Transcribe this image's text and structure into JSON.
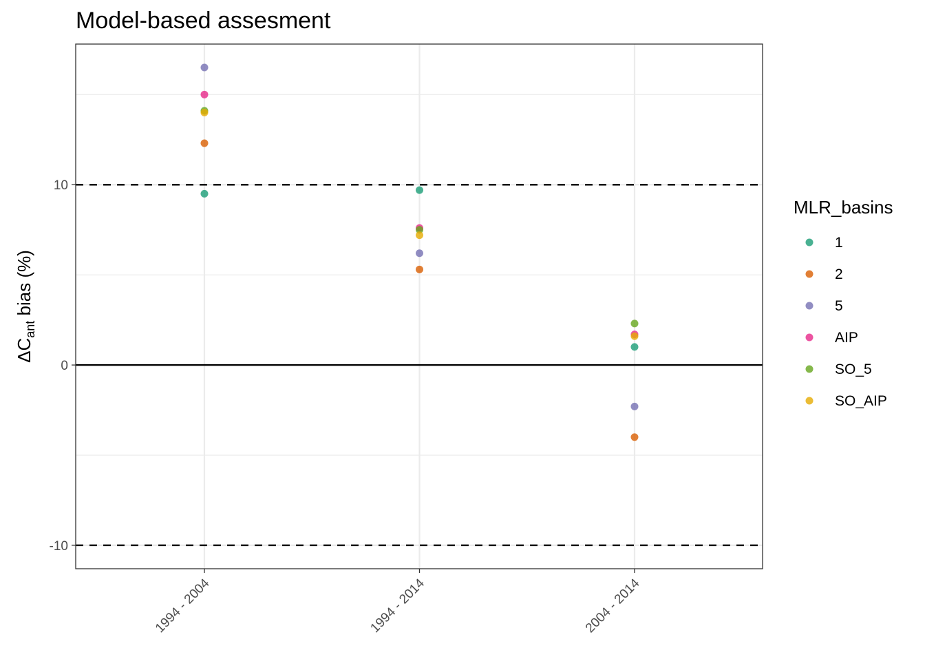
{
  "chart_data": {
    "type": "scatter",
    "title": "Model-based assesment",
    "xlabel": "",
    "ylabel": {
      "prefix": "ΔC",
      "subscript": "ant",
      "suffix": " bias (%)"
    },
    "categories": [
      "1994 - 2004",
      "1994 - 2014",
      "2004 - 2014"
    ],
    "ylim": [
      -11.3,
      17.8
    ],
    "y_ticks": [
      -10,
      0,
      10
    ],
    "y_minor_gridlines": [
      -5,
      5,
      15
    ],
    "reference_lines": [
      {
        "y": 10,
        "style": "dashed"
      },
      {
        "y": -10,
        "style": "dashed"
      },
      {
        "y": 0,
        "style": "solid"
      }
    ],
    "grid": true,
    "legend": {
      "title": "MLR_basins",
      "position": "right"
    },
    "series": [
      {
        "name": "1",
        "color": "#1b9e77",
        "values": [
          9.5,
          9.7,
          1.0
        ]
      },
      {
        "name": "2",
        "color": "#d95f02",
        "values": [
          12.3,
          5.3,
          -4.0
        ]
      },
      {
        "name": "5",
        "color": "#7570b3",
        "values": [
          16.5,
          6.2,
          -2.3
        ]
      },
      {
        "name": "AIP",
        "color": "#e7298a",
        "values": [
          15.0,
          7.6,
          1.7
        ]
      },
      {
        "name": "SO_5",
        "color": "#66a61e",
        "values": [
          14.1,
          7.5,
          2.3
        ]
      },
      {
        "name": "SO_AIP",
        "color": "#e6ab02",
        "values": [
          14.0,
          7.2,
          1.6
        ]
      }
    ]
  }
}
